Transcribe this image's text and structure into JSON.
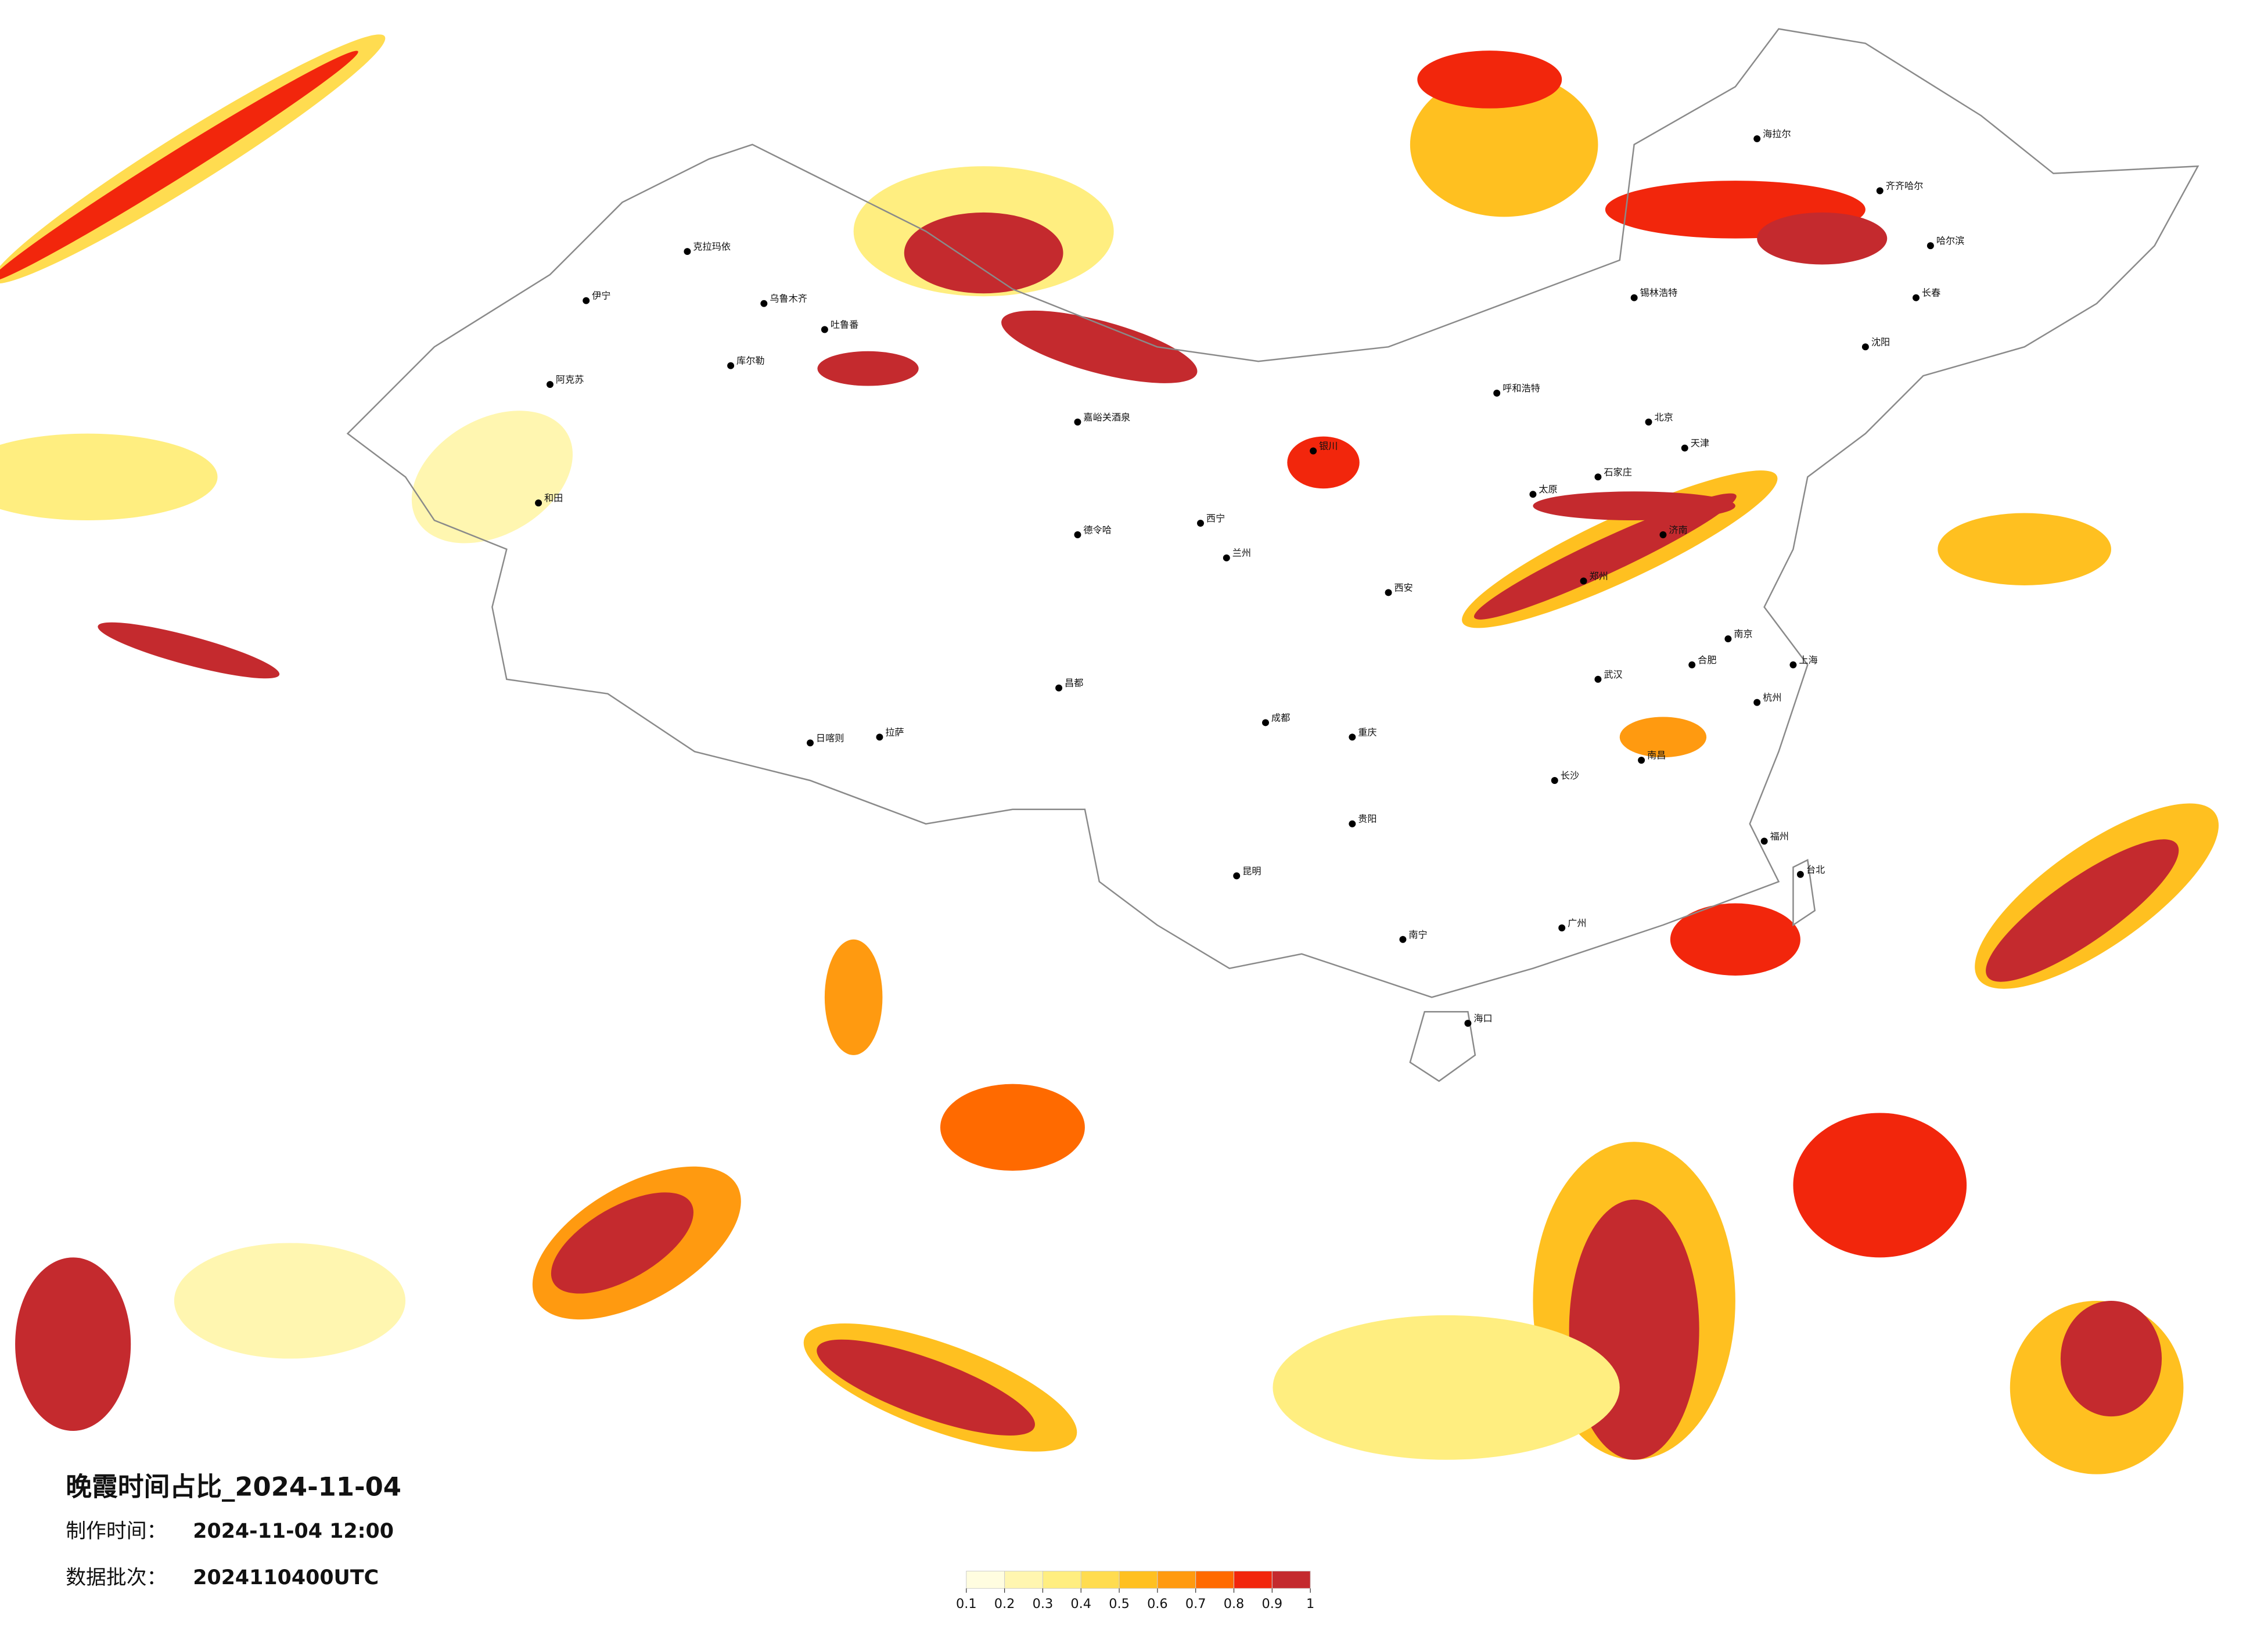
{
  "title": "晚霞时间占比_2024-11-04",
  "made_time": {
    "label": "制作时间：",
    "value": "2024-11-04 12:00"
  },
  "batch": {
    "label": "数据批次：",
    "value": "2024110400UTC"
  },
  "legend": {
    "ticks": [
      0.1,
      0.2,
      0.3,
      0.4,
      0.5,
      0.6,
      0.7,
      0.8,
      0.9,
      1
    ],
    "colors": [
      "#fffde0",
      "#fff6b0",
      "#ffee80",
      "#ffdc50",
      "#ffc020",
      "#ff9a10",
      "#ff6a00",
      "#f2260c",
      "#c42a2e"
    ]
  },
  "cities": [
    "克拉玛依",
    "伊宁",
    "乌鲁木齐",
    "吐鲁番",
    "库尔勒",
    "阿克苏",
    "和田",
    "嘉峪关酒泉",
    "德令哈",
    "日喀则",
    "拉萨",
    "昌都",
    "西宁",
    "兰州",
    "银川",
    "呼和浩特",
    "锡林浩特",
    "北京",
    "天津",
    "石家庄",
    "太原",
    "济南",
    "郑州",
    "西安",
    "成都",
    "重庆",
    "武汉",
    "合肥",
    "南京",
    "上海",
    "杭州",
    "长沙",
    "南昌",
    "福州",
    "台北",
    "贵阳",
    "昆明",
    "南宁",
    "广州",
    "海口",
    "沈阳",
    "长春",
    "哈尔滨",
    "齐齐哈尔",
    "海拉尔"
  ]
}
